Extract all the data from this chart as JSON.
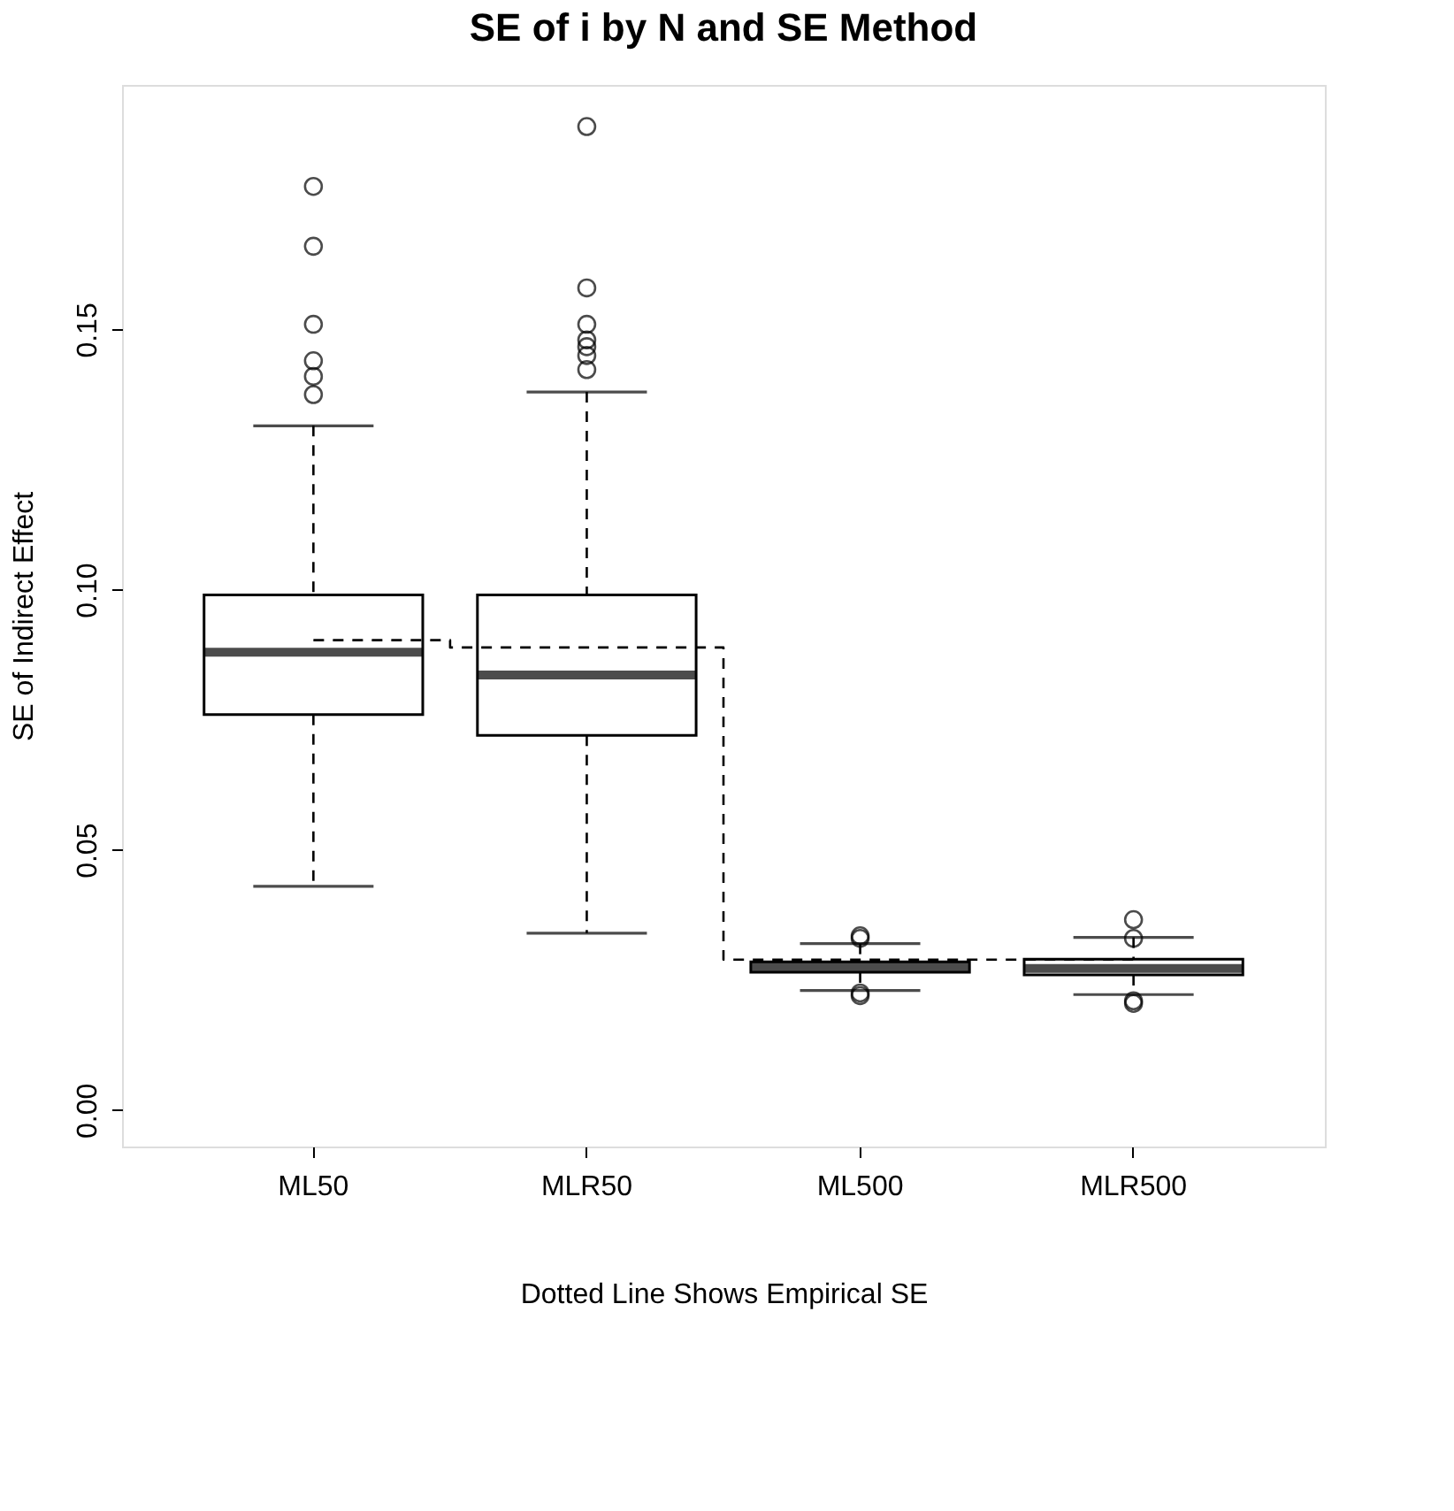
{
  "chart_data": {
    "type": "box",
    "title": "SE of i by N and SE Method",
    "xlabel": "Dotted Line Shows Empirical SE",
    "ylabel": "SE of Indirect Effect",
    "categories": [
      "ML50",
      "MLR50",
      "ML500",
      "MLR500"
    ],
    "ylim": [
      -0.007,
      0.197
    ],
    "yticks": [
      {
        "value": 0,
        "label": "0.00"
      },
      {
        "value": 0.05,
        "label": "0.05"
      },
      {
        "value": 0.1,
        "label": "0.10"
      },
      {
        "value": 0.15,
        "label": "0.15"
      }
    ],
    "grid": false,
    "boxes": [
      {
        "low": 0.043,
        "q1": 0.076,
        "median": 0.088,
        "q3": 0.099,
        "high": 0.1315,
        "outliers": [
          0.1775,
          0.166,
          0.151,
          0.144,
          0.141,
          0.1375
        ]
      },
      {
        "low": 0.034,
        "q1": 0.072,
        "median": 0.0836,
        "q3": 0.099,
        "high": 0.138,
        "outliers": [
          0.189,
          0.158,
          0.151,
          0.148,
          0.1467,
          0.145,
          0.1423
        ]
      },
      {
        "low": 0.023,
        "q1": 0.0265,
        "median": 0.0275,
        "q3": 0.0285,
        "high": 0.032,
        "outliers": [
          0.0335,
          0.033,
          0.0225,
          0.022
        ]
      },
      {
        "low": 0.0222,
        "q1": 0.026,
        "median": 0.0272,
        "q3": 0.029,
        "high": 0.0332,
        "outliers": [
          0.0366,
          0.033,
          0.021,
          0.0205
        ]
      }
    ],
    "series": [
      {
        "type": "step",
        "color": "#000000",
        "line_style": "dashed",
        "values": [
          0.0903,
          0.0889,
          0.0289,
          0.0289
        ]
      }
    ]
  }
}
